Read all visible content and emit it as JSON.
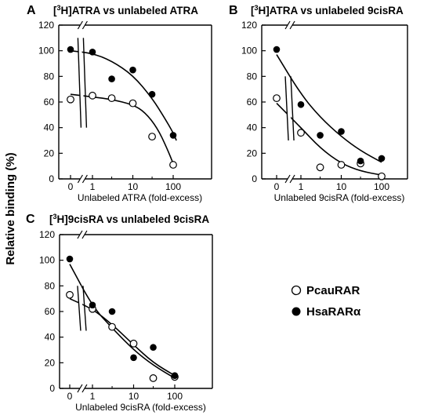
{
  "figure": {
    "ylabel": "Relative binding (%)"
  },
  "legend": {
    "items": [
      {
        "label": "PcauRAR",
        "marker": "open-circle"
      },
      {
        "label": "HsaRARα",
        "marker": "filled-circle"
      }
    ]
  },
  "chart_data": [
    {
      "panel": "A",
      "type": "scatter",
      "title": "[³H]ATRA vs unlabeled ATRA",
      "title_main": "ATRA vs unlabeled ATRA",
      "title_sup": "3",
      "title_lead": "[",
      "title_rb": "H]",
      "xlabel": "Unlabeled ATRA (fold-excess)",
      "x_scale": "log with broken axis at 0",
      "x_ticks": [
        "0",
        "1",
        "10",
        "100"
      ],
      "y_ticks": [
        "0",
        "20",
        "40",
        "60",
        "80",
        "100",
        "120"
      ],
      "ylim": [
        0,
        120
      ],
      "series": [
        {
          "name": "PcauRAR",
          "marker": "open",
          "x": [
            0,
            1,
            3,
            10,
            30,
            100
          ],
          "y": [
            62,
            65,
            63,
            59,
            33,
            11
          ]
        },
        {
          "name": "HsaRARα",
          "marker": "filled",
          "x": [
            0,
            1,
            3,
            10,
            30,
            100
          ],
          "y": [
            101,
            99,
            78,
            85,
            66,
            34
          ]
        }
      ],
      "fits": [
        {
          "series": "PcauRAR",
          "x": [
            0,
            1,
            3,
            10,
            20,
            40,
            70,
            100
          ],
          "y": [
            66,
            64,
            62,
            58,
            52,
            40,
            24,
            12
          ]
        },
        {
          "series": "HsaRARα",
          "x": [
            0,
            1,
            3,
            10,
            30,
            60,
            100,
            120
          ],
          "y": [
            100,
            98,
            92,
            81,
            63,
            48,
            36,
            30
          ]
        }
      ]
    },
    {
      "panel": "B",
      "type": "scatter",
      "title": "[³H]ATRA vs unlabeled 9cisRA",
      "title_main": "ATRA vs unlabeled 9cisRA",
      "title_sup": "3",
      "title_lead": "[",
      "title_rb": "H]",
      "xlabel": "Unlabeled 9cisRA (fold-excess)",
      "x_scale": "log with broken axis at 0",
      "x_ticks": [
        "0",
        "1",
        "10",
        "100"
      ],
      "y_ticks": [
        "0",
        "20",
        "40",
        "60",
        "80",
        "100",
        "120"
      ],
      "ylim": [
        0,
        120
      ],
      "series": [
        {
          "name": "PcauRAR",
          "marker": "open",
          "x": [
            0,
            1,
            3,
            10,
            30,
            100
          ],
          "y": [
            63,
            36,
            9,
            11,
            12,
            2
          ]
        },
        {
          "name": "HsaRARα",
          "marker": "filled",
          "x": [
            0,
            1,
            3,
            10,
            30,
            100
          ],
          "y": [
            101,
            58,
            34,
            37,
            14,
            16
          ]
        }
      ],
      "fits": [
        {
          "series": "PcauRAR",
          "x": [
            0,
            1,
            3,
            10,
            30,
            100
          ],
          "y": [
            59,
            40,
            24,
            12,
            6,
            3
          ]
        },
        {
          "series": "HsaRARα",
          "x": [
            0,
            1,
            3,
            10,
            30,
            100
          ],
          "y": [
            97,
            66,
            48,
            33,
            22,
            13
          ]
        }
      ]
    },
    {
      "panel": "C",
      "type": "scatter",
      "title": "[³H]9cisRA vs unlabeled 9cisRA",
      "title_main": "9cisRA vs unlabeled 9cisRA",
      "title_sup": "3",
      "title_lead": "[",
      "title_rb": "H]",
      "xlabel": "Unlabeled 9cisRA (fold-excess)",
      "x_scale": "log with broken axis at 0",
      "x_ticks": [
        "0",
        "1",
        "10",
        "100"
      ],
      "y_ticks": [
        "0",
        "20",
        "40",
        "60",
        "80",
        "100",
        "120"
      ],
      "ylim": [
        0,
        120
      ],
      "series": [
        {
          "name": "PcauRAR",
          "marker": "open",
          "x": [
            0,
            1,
            3,
            10,
            30,
            100
          ],
          "y": [
            73,
            62,
            48,
            35,
            8,
            9
          ]
        },
        {
          "name": "HsaRARα",
          "marker": "filled",
          "x": [
            0,
            1,
            3,
            10,
            30,
            100
          ],
          "y": [
            101,
            65,
            60,
            24,
            32,
            10
          ]
        }
      ],
      "fits": [
        {
          "series": "PcauRAR",
          "x": [
            0,
            1,
            3,
            10,
            30,
            100
          ],
          "y": [
            70,
            62,
            50,
            34,
            20,
            10
          ]
        },
        {
          "series": "HsaRARα",
          "x": [
            0,
            1,
            3,
            10,
            30,
            100
          ],
          "y": [
            97,
            64,
            47,
            30,
            18,
            8
          ]
        }
      ]
    }
  ]
}
